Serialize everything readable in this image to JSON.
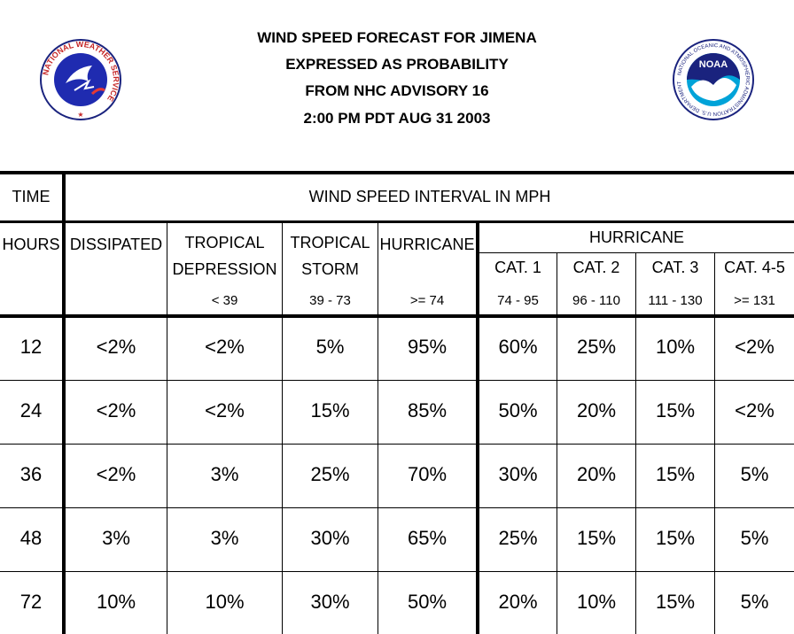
{
  "title_lines": [
    "WIND SPEED FORECAST FOR JIMENA",
    "EXPRESSED AS PROBABILITY",
    "FROM NHC ADVISORY   16",
    "2:00 PM PDT AUG 31 2003"
  ],
  "logos": {
    "left_text": "NATIONAL WEATHER SERVICE",
    "right_text": "NOAA",
    "right_ring_text": "NATIONAL OCEANIC AND ATMOSPHERIC ADMINISTRATION U.S. DEPARTMENT OF COMMERCE"
  },
  "header": {
    "time": "TIME",
    "interval": "WIND SPEED INTERVAL IN MPH",
    "hours": "HOURS",
    "dissipated": "DISSIPATED",
    "td_line1": "TROPICAL",
    "td_line2": "DEPRESSION",
    "td_range": "< 39",
    "ts_line1": "TROPICAL",
    "ts_line2": "STORM",
    "ts_range": "39 - 73",
    "hurricane": "HURRICANE",
    "hurricane_range": ">= 74",
    "hurricane_group": "HURRICANE",
    "cats": [
      {
        "label": "CAT. 1",
        "range": "74 - 95"
      },
      {
        "label": "CAT. 2",
        "range": "96 - 110"
      },
      {
        "label": "CAT. 3",
        "range": "111 - 130"
      },
      {
        "label": "CAT. 4-5",
        "range": ">= 131"
      }
    ]
  },
  "rows": [
    {
      "hours": "12",
      "values": [
        "<2%",
        "<2%",
        "5%",
        "95%",
        "60%",
        "25%",
        "10%",
        "<2%"
      ]
    },
    {
      "hours": "24",
      "values": [
        "<2%",
        "<2%",
        "15%",
        "85%",
        "50%",
        "20%",
        "15%",
        "<2%"
      ]
    },
    {
      "hours": "36",
      "values": [
        "<2%",
        "3%",
        "25%",
        "70%",
        "30%",
        "20%",
        "15%",
        "5%"
      ]
    },
    {
      "hours": "48",
      "values": [
        "3%",
        "3%",
        "30%",
        "65%",
        "25%",
        "15%",
        "15%",
        "5%"
      ]
    },
    {
      "hours": "72",
      "values": [
        "10%",
        "10%",
        "30%",
        "50%",
        "20%",
        "10%",
        "15%",
        "5%"
      ]
    }
  ]
}
